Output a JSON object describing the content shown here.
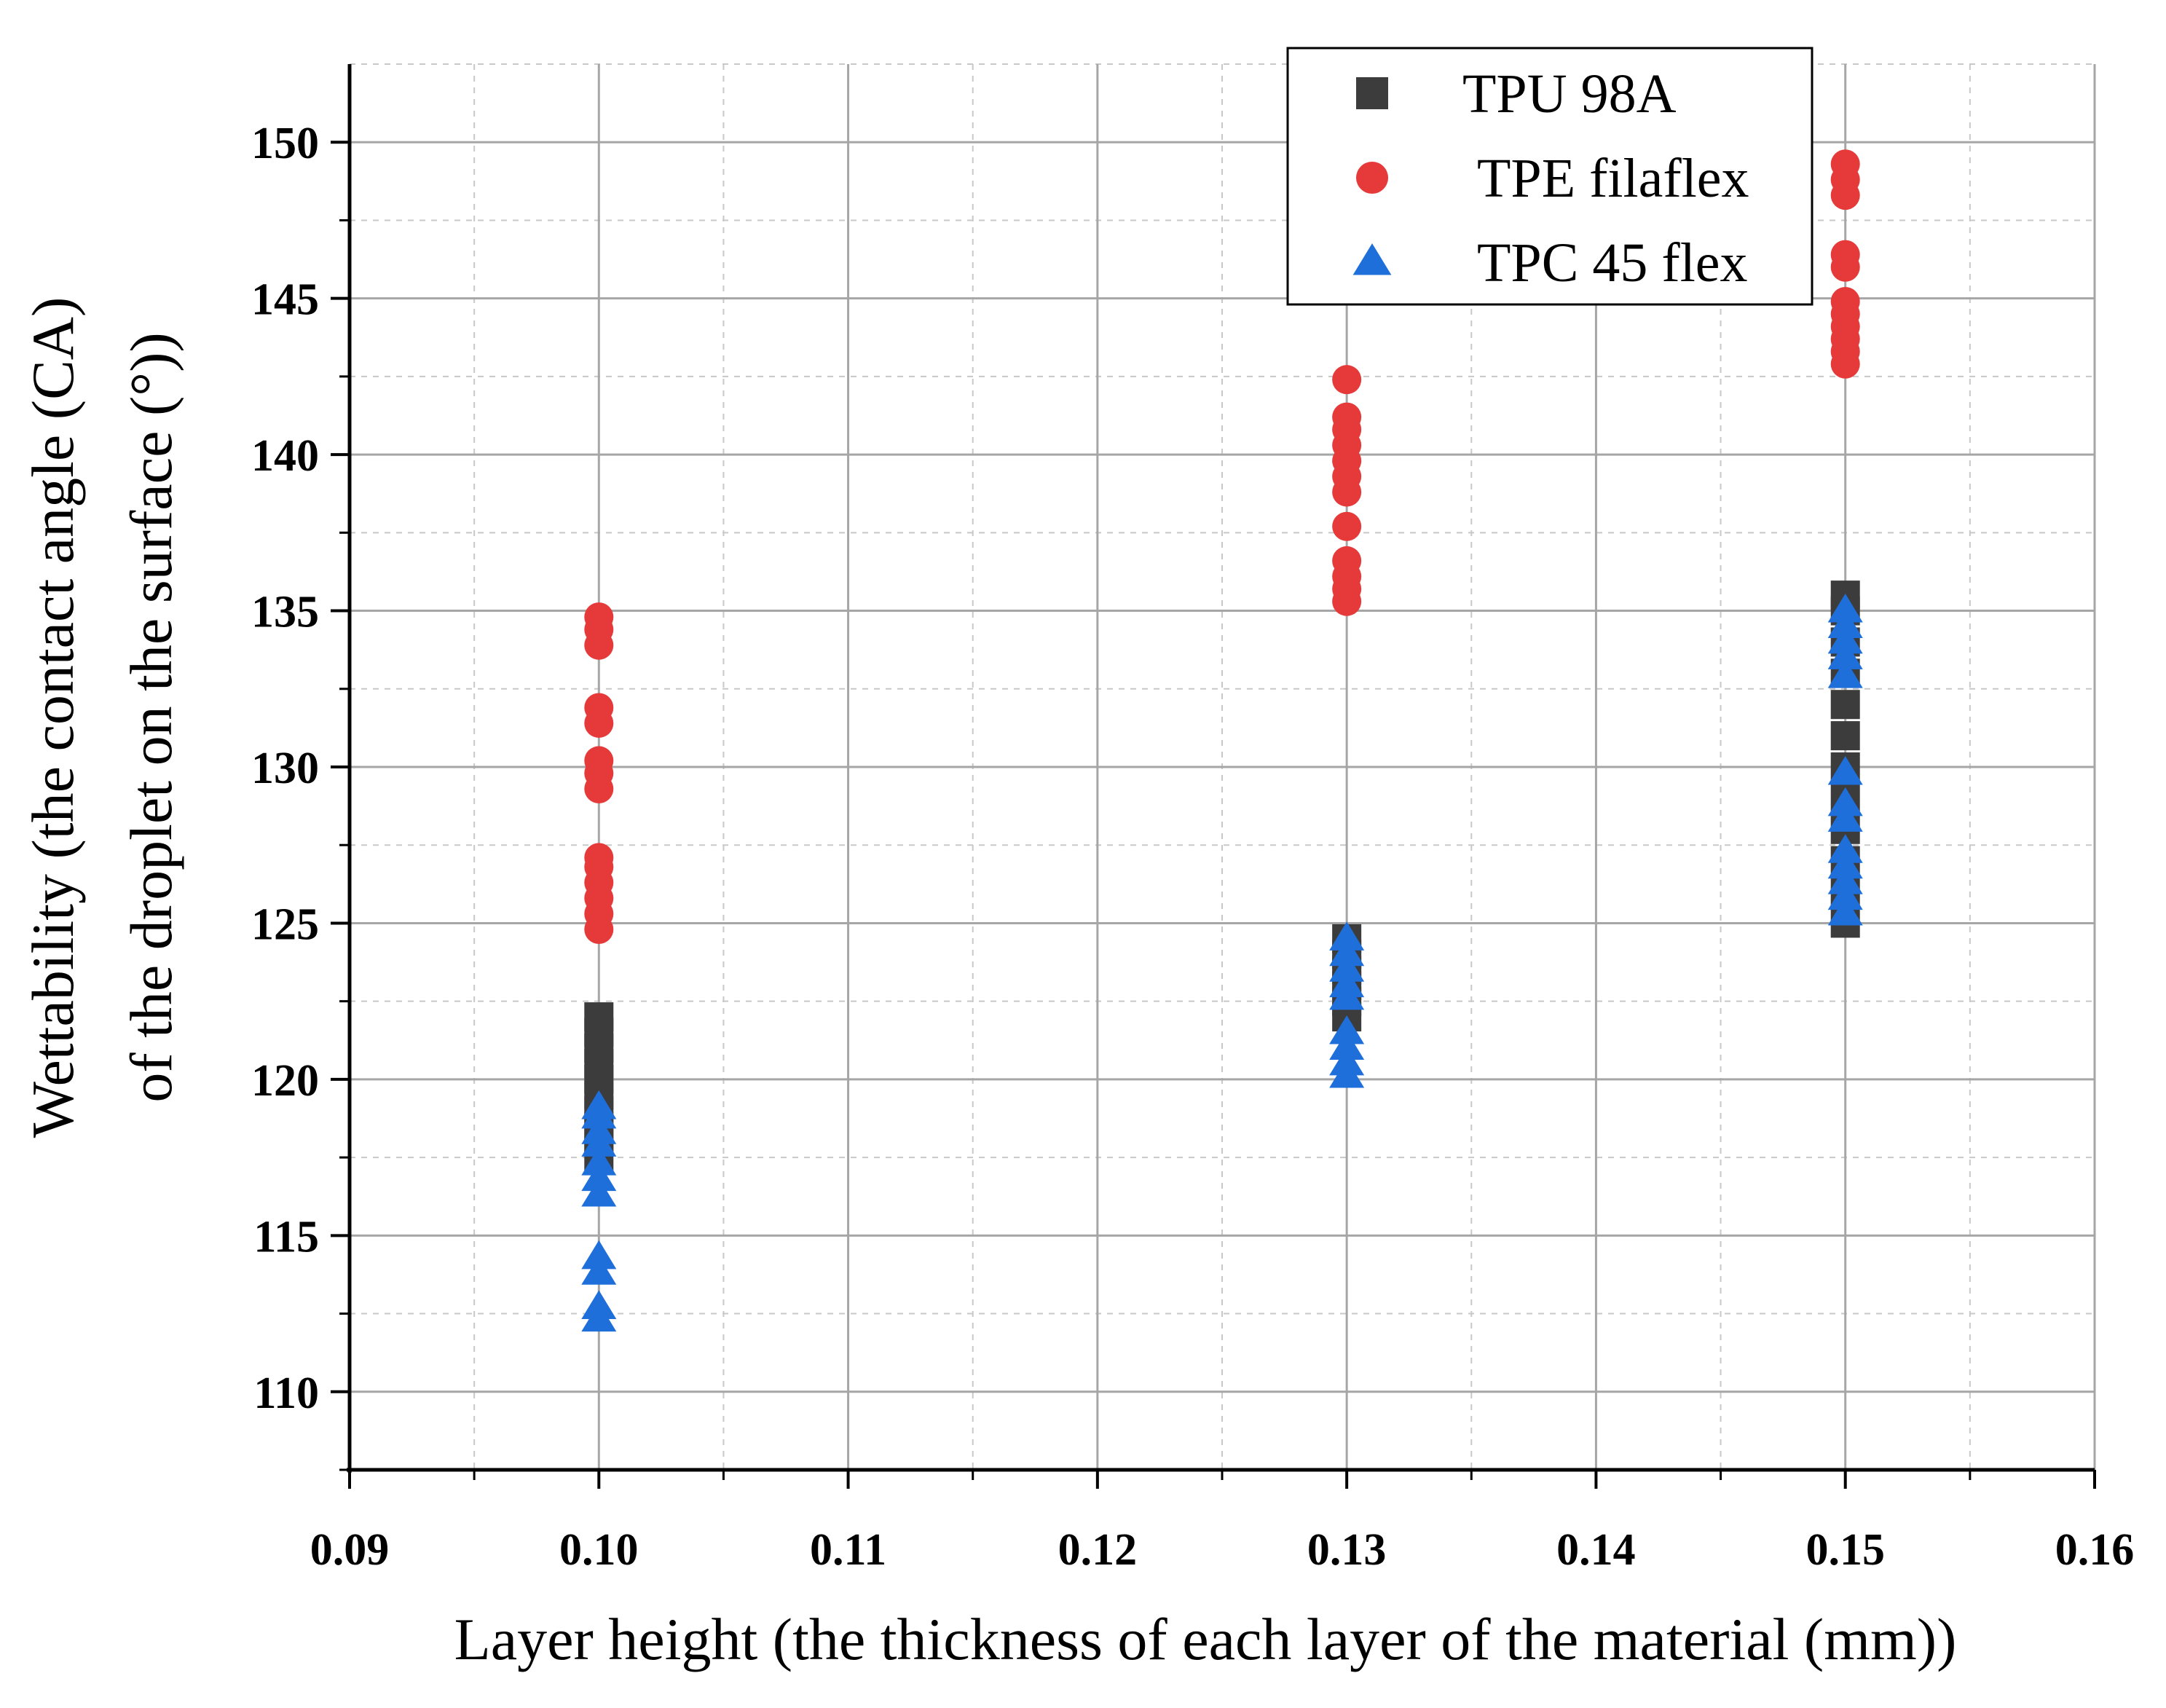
{
  "chart_data": {
    "type": "scatter",
    "title": "",
    "xlabel": "Layer height (the thickness of each layer of the material (mm))",
    "ylabel_lines": [
      "Wettability (the contact angle (CA)",
      "of the droplet on the surface (°))"
    ],
    "xlim": [
      0.09,
      0.16
    ],
    "ylim": [
      107.5,
      152.5
    ],
    "x_ticks": [
      "0.09",
      "0.10",
      "0.11",
      "0.12",
      "0.13",
      "0.14",
      "0.15",
      "0.16"
    ],
    "y_ticks": [
      "110",
      "115",
      "120",
      "125",
      "130",
      "135",
      "140",
      "145",
      "150"
    ],
    "grid": true,
    "legend_position": "top-right",
    "series": [
      {
        "name": "TPU 98A",
        "marker": "square",
        "color": "#3c3c3c",
        "points": [
          [
            0.1,
            117.5
          ],
          [
            0.1,
            118.0
          ],
          [
            0.1,
            118.5
          ],
          [
            0.1,
            119.0
          ],
          [
            0.1,
            119.5
          ],
          [
            0.1,
            120.0
          ],
          [
            0.1,
            120.5
          ],
          [
            0.1,
            121.0
          ],
          [
            0.1,
            121.5
          ],
          [
            0.1,
            122.0
          ],
          [
            0.13,
            122.0
          ],
          [
            0.13,
            122.5
          ],
          [
            0.13,
            123.0
          ],
          [
            0.13,
            123.5
          ],
          [
            0.13,
            124.0
          ],
          [
            0.13,
            124.5
          ],
          [
            0.15,
            125.0
          ],
          [
            0.15,
            126.0
          ],
          [
            0.15,
            127.0
          ],
          [
            0.15,
            128.0
          ],
          [
            0.15,
            129.0
          ],
          [
            0.15,
            130.0
          ],
          [
            0.15,
            131.0
          ],
          [
            0.15,
            132.0
          ],
          [
            0.15,
            133.0
          ],
          [
            0.15,
            134.0
          ],
          [
            0.15,
            135.0
          ],
          [
            0.15,
            135.5
          ]
        ]
      },
      {
        "name": "TPE filaflex",
        "marker": "circle",
        "color": "#e63a3a",
        "points": [
          [
            0.1,
            124.8
          ],
          [
            0.1,
            125.3
          ],
          [
            0.1,
            125.8
          ],
          [
            0.1,
            126.3
          ],
          [
            0.1,
            126.8
          ],
          [
            0.1,
            127.1
          ],
          [
            0.1,
            129.3
          ],
          [
            0.1,
            129.8
          ],
          [
            0.1,
            130.2
          ],
          [
            0.1,
            131.4
          ],
          [
            0.1,
            131.9
          ],
          [
            0.1,
            133.9
          ],
          [
            0.1,
            134.4
          ],
          [
            0.1,
            134.8
          ],
          [
            0.13,
            135.3
          ],
          [
            0.13,
            135.7
          ],
          [
            0.13,
            136.1
          ],
          [
            0.13,
            136.6
          ],
          [
            0.13,
            137.7
          ],
          [
            0.13,
            138.8
          ],
          [
            0.13,
            139.3
          ],
          [
            0.13,
            139.8
          ],
          [
            0.13,
            140.3
          ],
          [
            0.13,
            140.8
          ],
          [
            0.13,
            141.2
          ],
          [
            0.13,
            142.4
          ],
          [
            0.15,
            142.9
          ],
          [
            0.15,
            143.3
          ],
          [
            0.15,
            143.7
          ],
          [
            0.15,
            144.1
          ],
          [
            0.15,
            144.5
          ],
          [
            0.15,
            144.9
          ],
          [
            0.15,
            146.0
          ],
          [
            0.15,
            146.4
          ],
          [
            0.15,
            148.3
          ],
          [
            0.15,
            148.8
          ],
          [
            0.15,
            149.3
          ]
        ]
      },
      {
        "name": "TPC 45 flex",
        "marker": "triangle",
        "color": "#1f6fdb",
        "points": [
          [
            0.1,
            112.3
          ],
          [
            0.1,
            112.7
          ],
          [
            0.1,
            113.8
          ],
          [
            0.1,
            114.3
          ],
          [
            0.1,
            116.3
          ],
          [
            0.1,
            116.8
          ],
          [
            0.1,
            117.3
          ],
          [
            0.1,
            117.9
          ],
          [
            0.1,
            118.3
          ],
          [
            0.1,
            118.8
          ],
          [
            0.1,
            119.1
          ],
          [
            0.13,
            120.1
          ],
          [
            0.13,
            120.5
          ],
          [
            0.13,
            121.0
          ],
          [
            0.13,
            121.5
          ],
          [
            0.13,
            122.6
          ],
          [
            0.13,
            123.0
          ],
          [
            0.13,
            123.5
          ],
          [
            0.13,
            124.0
          ],
          [
            0.13,
            124.5
          ],
          [
            0.15,
            125.3
          ],
          [
            0.15,
            125.8
          ],
          [
            0.15,
            126.3
          ],
          [
            0.15,
            126.8
          ],
          [
            0.15,
            127.3
          ],
          [
            0.15,
            128.3
          ],
          [
            0.15,
            128.8
          ],
          [
            0.15,
            129.8
          ],
          [
            0.15,
            132.9
          ],
          [
            0.15,
            133.5
          ],
          [
            0.15,
            134.0
          ],
          [
            0.15,
            134.5
          ],
          [
            0.15,
            135.0
          ]
        ]
      }
    ]
  }
}
